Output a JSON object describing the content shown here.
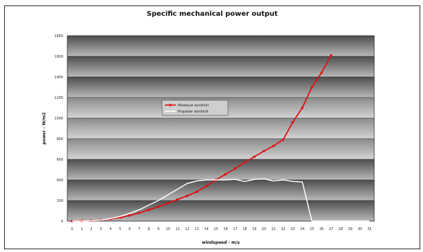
{
  "chart_data": {
    "type": "line",
    "title": "Specific mechanical power output",
    "xlabel": "windspeed - m/s",
    "ylabel": "power - W/m2",
    "x": [
      0,
      1,
      2,
      3,
      4,
      5,
      6,
      7,
      8,
      9,
      10,
      11,
      12,
      13,
      14,
      15,
      16,
      17,
      18,
      19,
      20,
      21,
      22,
      23,
      24,
      25,
      26,
      27,
      28,
      29,
      30,
      31
    ],
    "ylim": [
      0,
      1800
    ],
    "yticks": [
      0,
      200,
      400,
      600,
      800,
      1000,
      1200,
      1400,
      1600,
      1800
    ],
    "grid": true,
    "legend_position": "center-left",
    "series": [
      {
        "name": "Medieval windmill",
        "color": "#e01010",
        "values": [
          0,
          2,
          5,
          10,
          20,
          35,
          55,
          80,
          110,
          140,
          175,
          210,
          245,
          285,
          340,
          400,
          455,
          510,
          570,
          625,
          680,
          730,
          790,
          960,
          1100,
          1300,
          1440,
          1610,
          null,
          null,
          null,
          null
        ]
      },
      {
        "name": "Propeller windmill",
        "color": "#ffffff",
        "values": [
          0,
          1,
          4,
          10,
          25,
          45,
          75,
          110,
          155,
          200,
          255,
          310,
          365,
          390,
          400,
          400,
          400,
          405,
          385,
          405,
          410,
          390,
          400,
          385,
          380,
          0,
          0,
          0,
          0,
          0,
          0,
          0
        ]
      }
    ]
  }
}
